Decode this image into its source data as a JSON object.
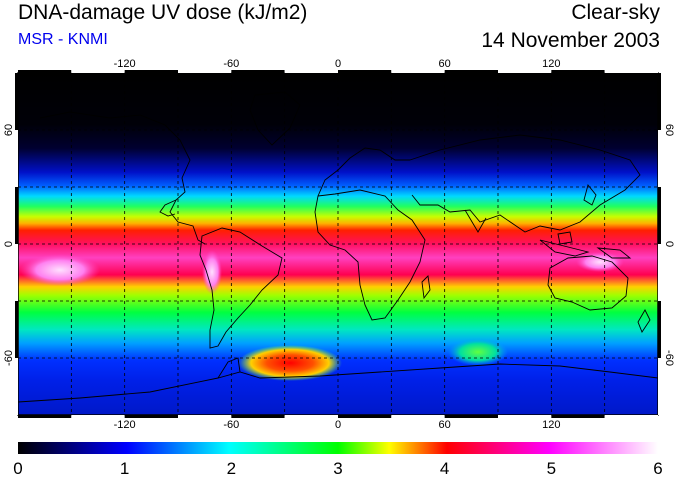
{
  "header": {
    "title": "DNA-damage UV dose (kJ/m2)",
    "source": "MSR - KNMI",
    "condition": "Clear-sky",
    "date": "14 November 2003"
  },
  "map": {
    "projection": "equirectangular",
    "lon_range": [
      -180,
      180
    ],
    "lat_range": [
      -90,
      90
    ],
    "lon_ticks": [
      -120,
      -60,
      0,
      60,
      120
    ],
    "lat_ticks": [
      60,
      0,
      -60
    ],
    "lon_tick_labels": [
      "-120",
      "-60",
      "0",
      "60",
      "120"
    ],
    "lat_tick_labels": [
      "60",
      "0",
      "-60"
    ],
    "grid": true,
    "grid_style": "dashed"
  },
  "colorbar": {
    "min": 0,
    "max": 6,
    "tick_labels": [
      "0",
      "1",
      "2",
      "3",
      "4",
      "5",
      "6"
    ],
    "colors": [
      "#000000",
      "#0000ff",
      "#00ffff",
      "#00ff00",
      "#ffff00",
      "#ff0000",
      "#ff00ff",
      "#ffffff"
    ]
  }
}
